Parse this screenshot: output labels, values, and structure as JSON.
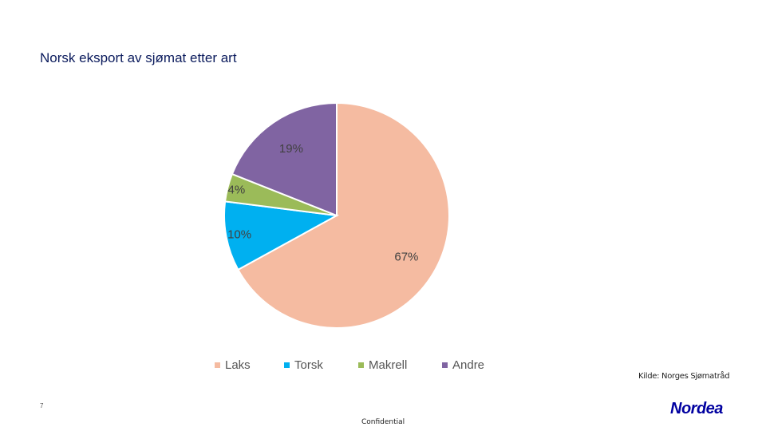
{
  "title": "Norsk eksport av sjømat etter art",
  "chart_data": {
    "type": "pie",
    "categories": [
      "Laks",
      "Torsk",
      "Makrell",
      "Andre"
    ],
    "values": [
      67,
      10,
      4,
      19
    ],
    "labels": [
      "67%",
      "10%",
      "4%",
      "19%"
    ],
    "colors": [
      "#f5bba1",
      "#00b0f0",
      "#9bbb59",
      "#8064a2"
    ],
    "legend_position": "bottom"
  },
  "source": "Kilde: Norges Sjømatråd",
  "page_number": "7",
  "footer": "Confidential",
  "logo": {
    "text": "Nordea",
    "color": "#0000a0"
  }
}
